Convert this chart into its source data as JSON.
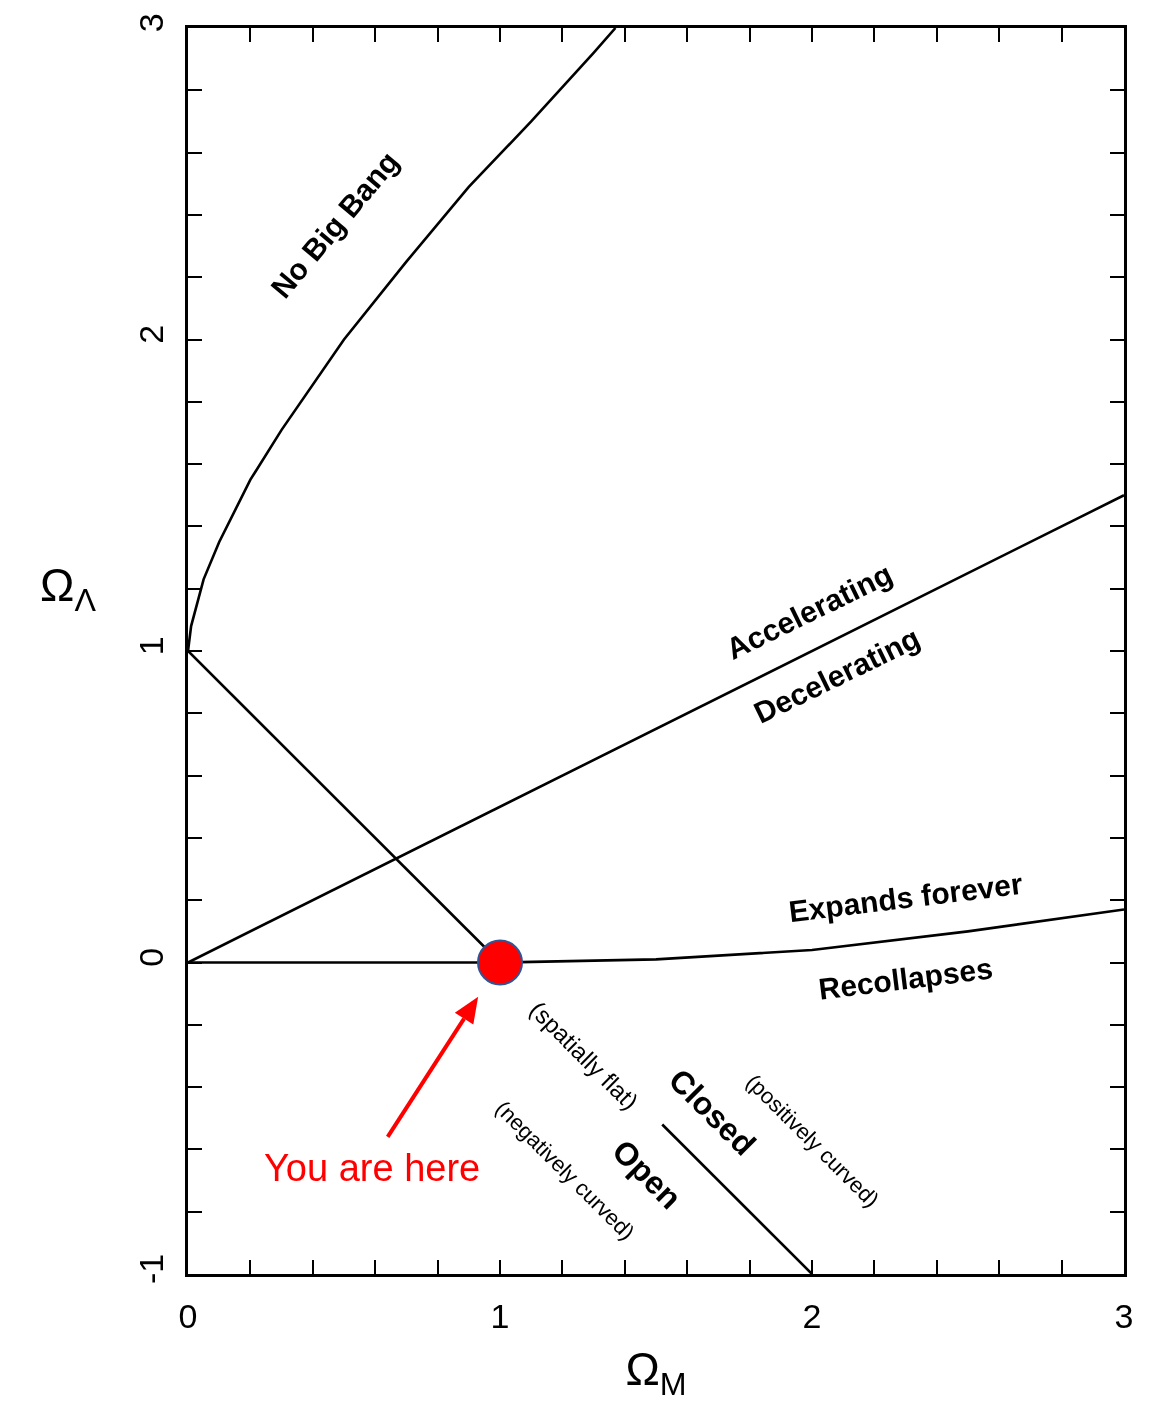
{
  "chart_data": {
    "type": "line",
    "xlabel": "Ω$_{M}$",
    "ylabel": "Ω$_{Λ}$",
    "xlim": [
      0,
      3
    ],
    "ylim": [
      -1,
      3
    ],
    "xticks": [
      0,
      {
        "value": 0.2,
        "label": null
      },
      {
        "value": 0.4,
        "label": null
      },
      {
        "value": 0.6,
        "label": null
      },
      {
        "value": 0.8,
        "label": null
      },
      1,
      {
        "value": 1.2,
        "label": null
      },
      {
        "value": 1.4,
        "label": null
      },
      {
        "value": 1.6,
        "label": null
      },
      {
        "value": 1.8,
        "label": null
      },
      2,
      {
        "value": 2.2,
        "label": null
      },
      {
        "value": 2.4,
        "label": null
      },
      {
        "value": 2.6,
        "label": null
      },
      {
        "value": 2.8,
        "label": null
      },
      3
    ],
    "yticks": [
      -1,
      {
        "value": -0.8,
        "label": null
      },
      {
        "value": -0.6,
        "label": null
      },
      {
        "value": -0.4,
        "label": null
      },
      {
        "value": -0.2,
        "label": null
      },
      0,
      {
        "value": 0.2,
        "label": null
      },
      {
        "value": 0.4,
        "label": null
      },
      {
        "value": 0.6,
        "label": null
      },
      {
        "value": 0.8,
        "label": null
      },
      1,
      {
        "value": 1.2,
        "label": null
      },
      {
        "value": 1.4,
        "label": null
      },
      {
        "value": 1.6,
        "label": null
      },
      {
        "value": 1.8,
        "label": null
      },
      2,
      {
        "value": 2.2,
        "label": null
      },
      {
        "value": 2.4,
        "label": null
      },
      {
        "value": 2.6,
        "label": null
      },
      {
        "value": 2.8,
        "label": null
      },
      3
    ],
    "grid": false,
    "marker": "none",
    "line_style": "solid",
    "series": [
      {
        "color": "#000000",
        "x": [
          0,
          0.01,
          0.05,
          0.1,
          0.2,
          0.3,
          0.5,
          0.7,
          0.9,
          1.1,
          1.3,
          1.37
        ],
        "values": [
          1,
          1.08,
          1.23,
          1.35,
          1.55,
          1.71,
          2.0,
          2.25,
          2.49,
          2.7,
          2.92,
          3.0
        ]
      },
      {
        "color": "#000000",
        "x": [
          0,
          3
        ],
        "values": [
          0,
          1.5
        ]
      },
      {
        "color": "#000000",
        "x": [
          0,
          1,
          1.25,
          1.52,
          2
        ],
        "values": [
          1,
          0,
          null,
          -0.52,
          -1
        ]
      },
      {
        "color": "#000000",
        "x": [
          0,
          1,
          1.5,
          2,
          2.5,
          3
        ],
        "values": [
          0,
          0,
          0.01,
          0.04,
          0.1,
          0.17
        ]
      },
      {
        "type": "scatter",
        "marker": "circle",
        "color": "#ff0000",
        "x": [
          1
        ],
        "values": [
          0
        ]
      }
    ],
    "annotations": [
      "No Big Bang",
      "Accelerating",
      "Decelerating",
      "Expands forever",
      "Recollapses",
      "(spatially flat)",
      "Closed",
      "Open",
      "(positively curved)",
      "(negatively curved)",
      "You are here"
    ]
  }
}
